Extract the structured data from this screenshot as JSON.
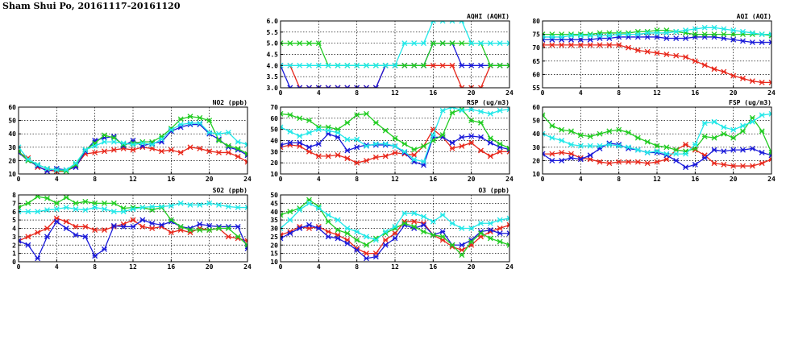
{
  "page": {
    "title": "Sham Shui Po, 20161117-20161120"
  },
  "colors": {
    "red": "#e8281c",
    "blue": "#1a1ad9",
    "green": "#22cc22",
    "cyan": "#22e8e8",
    "grid": "#000000"
  },
  "chart_data": [
    {
      "id": "aqhi",
      "type": "line",
      "title": "AQHI (AQHI)",
      "xlim": [
        0,
        24
      ],
      "xticks": [
        0,
        4,
        8,
        12,
        16,
        20,
        24
      ],
      "ylim": [
        3.0,
        6.0
      ],
      "yticks": [
        "3.0",
        "3.5",
        "4.0",
        "4.5",
        "5.0",
        "5.5",
        "6.0"
      ],
      "grid": true,
      "series": [
        {
          "color": "red",
          "values": [
            4,
            4,
            3,
            3,
            3,
            3,
            3,
            3,
            3,
            3,
            3,
            4,
            4,
            4,
            4,
            4,
            4,
            4,
            4,
            3,
            3,
            3,
            4,
            4,
            4
          ]
        },
        {
          "color": "blue",
          "values": [
            4,
            3,
            3,
            3,
            3,
            3,
            3,
            3,
            3,
            3,
            3,
            4,
            4,
            4,
            4,
            4,
            5,
            5,
            5,
            4,
            4,
            4,
            4,
            4,
            4
          ]
        },
        {
          "color": "green",
          "values": [
            5,
            5,
            5,
            5,
            5,
            4,
            4,
            4,
            4,
            4,
            4,
            4,
            4,
            4,
            4,
            4,
            5,
            5,
            5,
            5,
            5,
            5,
            4,
            4,
            4
          ]
        },
        {
          "color": "cyan",
          "values": [
            4,
            4,
            4,
            4,
            4,
            4,
            4,
            4,
            4,
            4,
            4,
            4,
            4,
            5,
            5,
            5,
            6,
            6,
            6,
            6,
            5,
            5,
            5,
            5,
            5
          ]
        }
      ]
    },
    {
      "id": "aqi",
      "type": "line",
      "title": "AQI (AQI)",
      "xlim": [
        0,
        24
      ],
      "xticks": [
        0,
        4,
        8,
        12,
        16,
        20,
        24
      ],
      "ylim": [
        55,
        80
      ],
      "yticks": [
        "55",
        "60",
        "65",
        "70",
        "75",
        "80"
      ],
      "grid": true,
      "series": [
        {
          "color": "red",
          "values": [
            71,
            71,
            71,
            71,
            71,
            71,
            71,
            71,
            71,
            70,
            69,
            68.5,
            68,
            67.5,
            67,
            66.5,
            65,
            63.5,
            62,
            61,
            59.5,
            58.5,
            57.5,
            57,
            57
          ]
        },
        {
          "color": "blue",
          "values": [
            73,
            73,
            73,
            73,
            73,
            73,
            73.5,
            73.5,
            74,
            74,
            74,
            74,
            74,
            73.5,
            73.5,
            73.5,
            74,
            74,
            74,
            73.5,
            73,
            72.5,
            72,
            72,
            72
          ]
        },
        {
          "color": "green",
          "values": [
            75,
            75,
            75,
            75,
            75,
            75,
            75.5,
            75.5,
            75.5,
            75.5,
            76,
            76,
            76.5,
            76.5,
            76,
            75.5,
            75,
            75,
            75,
            75,
            75,
            75,
            75,
            75,
            74.5
          ]
        },
        {
          "color": "cyan",
          "values": [
            74,
            74,
            74,
            74.5,
            74.5,
            74.5,
            74.5,
            74.5,
            75,
            75,
            75,
            75.5,
            75.5,
            75.5,
            76,
            76.5,
            77,
            77.5,
            77.5,
            77,
            76.5,
            76,
            75.5,
            75,
            75
          ]
        }
      ]
    },
    {
      "id": "no2",
      "type": "line",
      "title": "NO2 (ppb)",
      "xlim": [
        0,
        24
      ],
      "xticks": [
        0,
        4,
        8,
        12,
        16,
        20,
        24
      ],
      "ylim": [
        10,
        60
      ],
      "yticks": [
        "10",
        "20",
        "30",
        "40",
        "50",
        "60"
      ],
      "grid": true,
      "series": [
        {
          "color": "red",
          "values": [
            26,
            22,
            15,
            13,
            12,
            12,
            16,
            25,
            26,
            27,
            28,
            29,
            28,
            30,
            29,
            27,
            28,
            26,
            30,
            29,
            27,
            26,
            26,
            23,
            19
          ]
        },
        {
          "color": "blue",
          "values": [
            26,
            20,
            16,
            12,
            14,
            13,
            15,
            27,
            35,
            37,
            38,
            31,
            35,
            31,
            33,
            34,
            42,
            45,
            47,
            47,
            40,
            36,
            30,
            28,
            24
          ]
        },
        {
          "color": "green",
          "values": [
            27,
            20,
            17,
            14,
            13,
            12,
            17,
            28,
            33,
            39,
            37,
            32,
            33,
            34,
            34,
            38,
            44,
            51,
            53,
            52,
            50,
            35,
            31,
            29,
            25
          ]
        },
        {
          "color": "cyan",
          "values": [
            30,
            21,
            17,
            14,
            13,
            13,
            18,
            28,
            31,
            34,
            34,
            33,
            32,
            33,
            32,
            36,
            43,
            47,
            48,
            48,
            41,
            40,
            41,
            34,
            32
          ]
        }
      ]
    },
    {
      "id": "rsp",
      "type": "line",
      "title": "RSP (ug/m3)",
      "xlim": [
        0,
        24
      ],
      "xticks": [
        0,
        4,
        8,
        12,
        16,
        20,
        24
      ],
      "ylim": [
        10,
        70
      ],
      "yticks": [
        "10",
        "20",
        "30",
        "40",
        "50",
        "60",
        "70"
      ],
      "grid": true,
      "series": [
        {
          "color": "red",
          "values": [
            34,
            36,
            35,
            30,
            26,
            26,
            27,
            24,
            20,
            22,
            25,
            26,
            29,
            28,
            27,
            35,
            50,
            43,
            33,
            35,
            38,
            31,
            26,
            30,
            30
          ]
        },
        {
          "color": "blue",
          "values": [
            36,
            38,
            38,
            34,
            37,
            46,
            43,
            31,
            34,
            36,
            36,
            36,
            35,
            29,
            21,
            18,
            43,
            43,
            38,
            43,
            44,
            43,
            38,
            34,
            32
          ]
        },
        {
          "color": "green",
          "values": [
            64,
            63,
            60,
            58,
            52,
            52,
            50,
            56,
            63,
            64,
            56,
            49,
            42,
            37,
            32,
            35,
            40,
            45,
            65,
            68,
            58,
            56,
            42,
            37,
            33
          ]
        },
        {
          "color": "cyan",
          "values": [
            52,
            48,
            44,
            47,
            50,
            49,
            47,
            41,
            41,
            35,
            37,
            37,
            35,
            30,
            23,
            21,
            45,
            67,
            70,
            67,
            68,
            66,
            64,
            67,
            68
          ]
        }
      ]
    },
    {
      "id": "fsp",
      "type": "line",
      "title": "FSP (ug/m3)",
      "xlim": [
        0,
        24
      ],
      "xticks": [
        0,
        4,
        8,
        12,
        16,
        20,
        24
      ],
      "ylim": [
        10,
        60
      ],
      "yticks": [
        "10",
        "20",
        "30",
        "40",
        "50",
        "60"
      ],
      "grid": true,
      "series": [
        {
          "color": "red",
          "values": [
            25,
            25,
            26,
            25,
            22,
            21,
            19,
            18,
            19,
            19,
            19,
            18,
            19,
            21,
            28,
            32,
            28,
            24,
            18,
            17,
            16,
            16,
            16,
            18,
            21
          ]
        },
        {
          "color": "blue",
          "values": [
            25,
            20,
            20,
            22,
            21,
            24,
            29,
            33,
            32,
            29,
            28,
            26,
            26,
            24,
            20,
            15,
            17,
            22,
            28,
            27,
            28,
            28,
            29,
            26,
            24
          ]
        },
        {
          "color": "green",
          "values": [
            54,
            46,
            43,
            42,
            39,
            38,
            40,
            42,
            43,
            41,
            37,
            34,
            31,
            30,
            28,
            27,
            29,
            38,
            37,
            40,
            37,
            42,
            52,
            42,
            26
          ]
        },
        {
          "color": "cyan",
          "values": [
            40,
            37,
            35,
            32,
            31,
            31,
            31,
            32,
            31,
            30,
            28,
            26,
            27,
            25,
            25,
            25,
            32,
            48,
            49,
            45,
            43,
            46,
            49,
            54,
            55
          ]
        }
      ]
    },
    {
      "id": "so2",
      "type": "line",
      "title": "SO2 (ppb)",
      "xlim": [
        0,
        24
      ],
      "xticks": [
        0,
        4,
        8,
        12,
        16,
        20,
        24
      ],
      "ylim": [
        0,
        8
      ],
      "yticks": [
        "0",
        "1",
        "2",
        "3",
        "4",
        "5",
        "6",
        "7",
        "8"
      ],
      "grid": true,
      "series": [
        {
          "color": "red",
          "values": [
            2.5,
            3,
            3.5,
            4,
            5.2,
            4.8,
            4.2,
            4.2,
            3.8,
            3.8,
            4.2,
            4.5,
            5,
            4.2,
            4,
            4.2,
            3.5,
            3.8,
            3.5,
            4,
            3.8,
            4,
            3,
            2.8,
            2.5
          ]
        },
        {
          "color": "blue",
          "values": [
            2.5,
            2,
            0.4,
            3,
            4.8,
            4,
            3.2,
            3,
            0.7,
            1.5,
            4.3,
            4.2,
            4.2,
            5,
            4.6,
            4.4,
            4.8,
            4.2,
            4,
            4.5,
            4.3,
            4.2,
            4.2,
            4.2,
            1.6
          ]
        },
        {
          "color": "green",
          "values": [
            6.5,
            7,
            7.8,
            7.6,
            7,
            7.7,
            7,
            7.2,
            7,
            7,
            7,
            6.4,
            6.5,
            6.5,
            6.2,
            6.5,
            5,
            4.2,
            3.8,
            3.8,
            3.8,
            4,
            4,
            3,
            2
          ]
        },
        {
          "color": "cyan",
          "values": [
            6,
            6,
            6,
            6.2,
            6.3,
            6.5,
            6.3,
            6.2,
            6.5,
            6.3,
            6,
            6,
            6.3,
            6.5,
            6.6,
            6.6,
            6.7,
            7,
            6.8,
            6.8,
            7,
            6.8,
            6.6,
            6.5,
            6.5
          ]
        }
      ]
    },
    {
      "id": "o3",
      "type": "line",
      "title": "O3 (ppb)",
      "xlim": [
        0,
        24
      ],
      "xticks": [
        0,
        4,
        8,
        12,
        16,
        20,
        24
      ],
      "ylim": [
        10,
        50
      ],
      "yticks": [
        "10",
        "15",
        "20",
        "25",
        "30",
        "35",
        "40",
        "45",
        "50"
      ],
      "grid": true,
      "series": [
        {
          "color": "red",
          "values": [
            26,
            28,
            31,
            30,
            31,
            28,
            26,
            23,
            18,
            15,
            15,
            23,
            27,
            34,
            34,
            33,
            26,
            23,
            19,
            17,
            20,
            25,
            28,
            30,
            32
          ]
        },
        {
          "color": "blue",
          "values": [
            24,
            27,
            30,
            32,
            30,
            25,
            24,
            21,
            17,
            12,
            13,
            20,
            24,
            32,
            30,
            32,
            26,
            28,
            20,
            20,
            23,
            28,
            29,
            27,
            27
          ]
        },
        {
          "color": "green",
          "values": [
            38,
            40,
            42,
            47,
            43,
            34,
            29,
            27,
            23,
            20,
            24,
            27,
            30,
            33,
            31,
            28,
            26,
            25,
            20,
            14,
            22,
            27,
            24,
            22,
            20
          ]
        },
        {
          "color": "cyan",
          "values": [
            30,
            35,
            41,
            45,
            42,
            38,
            35,
            30,
            28,
            25,
            23,
            28,
            31,
            39,
            39,
            37,
            34,
            38,
            33,
            30,
            30,
            33,
            33,
            35,
            36
          ]
        }
      ]
    }
  ]
}
